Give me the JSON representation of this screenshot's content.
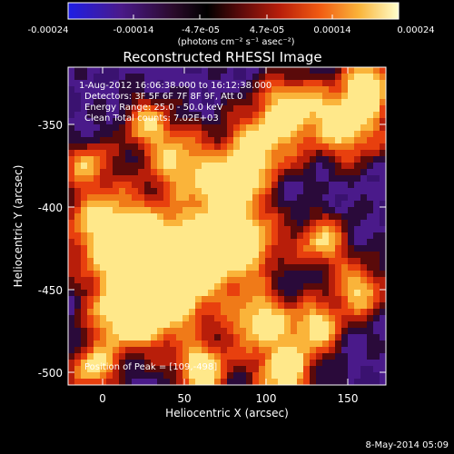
{
  "colorbar": {
    "tick_labels": [
      "-0.00024",
      "-0.00014",
      "-4.7e-05",
      "4.7e-05",
      "0.00014",
      "0.00024"
    ],
    "units_label": "(photons cm⁻² s⁻¹ asec⁻²)",
    "colors": [
      "#1e1ee6",
      "#4a1a8a",
      "#2a0a2a",
      "#000000",
      "#5a0a0a",
      "#b81e0a",
      "#f05a12",
      "#fab43a",
      "#ffffcc"
    ]
  },
  "image": {
    "title": "Reconstructed RHESSI Image",
    "info_lines": [
      "1-Aug-2012 16:06:38.000 to 16:12:38.000",
      "Detectors: 3F 5F 6F 7F 8F 9F, Att 0",
      "Energy Range: 25.0 - 50.0 keV",
      "Clean    Total counts: 7.02E+03"
    ],
    "peak_label": "Position of Peak = [109,-498]"
  },
  "axes": {
    "xlabel": "Heliocentric X (arcsec)",
    "ylabel": "Heliocentric Y (arcsec)",
    "xticks": [
      "0",
      "50",
      "100",
      "150"
    ],
    "yticks": [
      "-350",
      "-400",
      "-450",
      "-500"
    ]
  },
  "footer": {
    "timestamp": "8-May-2014 05:09"
  }
}
